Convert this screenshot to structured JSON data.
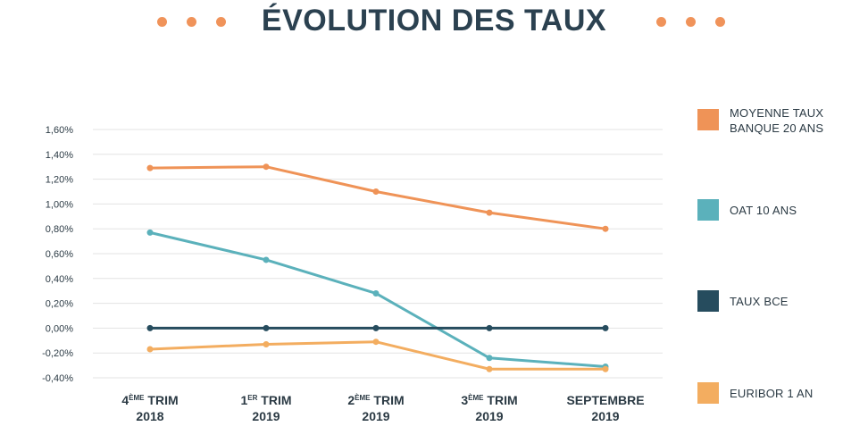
{
  "header": {
    "title": "ÉVOLUTION DES TAUX",
    "dot_color": "#f0935a"
  },
  "chart_data": {
    "type": "line",
    "title": "ÉVOLUTION DES TAUX",
    "categories": [
      {
        "line1": "4",
        "sup": "ÈME",
        "rest": " TRIM",
        "line2": "2018"
      },
      {
        "line1": "1",
        "sup": "ER",
        "rest": " TRIM",
        "line2": "2019"
      },
      {
        "line1": "2",
        "sup": "ÈME",
        "rest": "  TRIM",
        "line2": "2019"
      },
      {
        "line1": "3",
        "sup": "ÈME",
        "rest": " TRIM",
        "line2": "2019"
      },
      {
        "line1": "SEPTEMBRE",
        "sup": "",
        "rest": "",
        "line2": "2019"
      }
    ],
    "ylim": [
      -0.4,
      1.6
    ],
    "yticks": [
      1.6,
      1.4,
      1.2,
      1.0,
      0.8,
      0.6,
      0.4,
      0.2,
      0.0,
      -0.2,
      -0.4
    ],
    "ytick_labels": [
      "1,60%",
      "1,40%",
      "1,20%",
      "1,00%",
      "0,80%",
      "0,60%",
      "0,40%",
      "0,20%",
      "0,00%",
      "-0,20%",
      "-0,40%"
    ],
    "grid": true,
    "legend_position": "right",
    "series": [
      {
        "name": "MOYENNE TAUX BANQUE 20 ANS",
        "label_lines": [
          "MOYENNE TAUX",
          "BANQUE 20 ANS"
        ],
        "color": "#ef9357",
        "values": [
          1.29,
          1.3,
          1.1,
          0.93,
          0.8
        ]
      },
      {
        "name": "OAT 10 ANS",
        "label_lines": [
          "OAT 10 ANS"
        ],
        "color": "#5bb1bb",
        "values": [
          0.77,
          0.55,
          0.28,
          -0.24,
          -0.31
        ]
      },
      {
        "name": "TAUX BCE",
        "label_lines": [
          "TAUX BCE"
        ],
        "color": "#264c5e",
        "values": [
          0.0,
          0.0,
          0.0,
          0.0,
          0.0
        ]
      },
      {
        "name": "EURIBOR 1 AN",
        "label_lines": [
          "EURIBOR 1 AN"
        ],
        "color": "#f3ad60",
        "values": [
          -0.17,
          -0.13,
          -0.11,
          -0.33,
          -0.33
        ]
      }
    ]
  }
}
